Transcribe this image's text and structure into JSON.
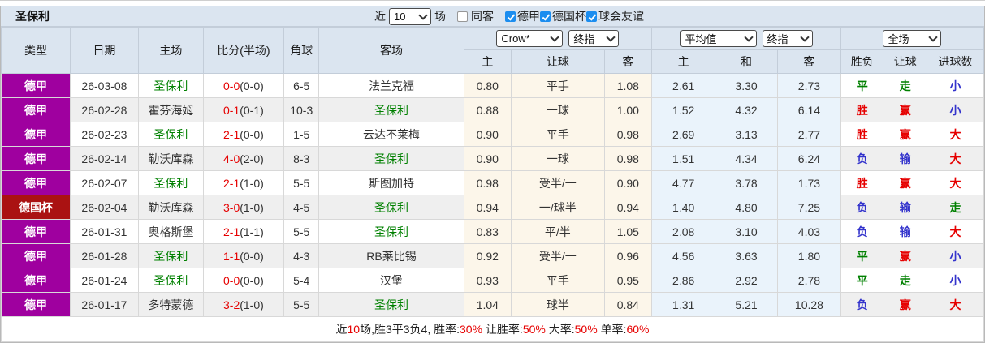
{
  "topbar": {
    "team": "圣保利",
    "recent_prefix": "近",
    "recent_count": "10",
    "recent_suffix": "场",
    "checkboxes": [
      {
        "label": "同客",
        "checked": false
      },
      {
        "label": "德甲",
        "checked": true
      },
      {
        "label": "德国杯",
        "checked": true
      },
      {
        "label": "球会友谊",
        "checked": true
      }
    ]
  },
  "header": {
    "main_cols": [
      "类型",
      "日期",
      "主场",
      "比分(半场)",
      "角球",
      "客场"
    ],
    "selects": {
      "bookmaker": "Crow*",
      "bookmaker_stage": "终指",
      "avg": "平均值",
      "avg_stage": "终指",
      "period": "全场"
    },
    "sub_cols": [
      "主",
      "让球",
      "客",
      "主",
      "和",
      "客",
      "胜负",
      "让球",
      "进球数"
    ]
  },
  "colors": {
    "header_bg": "#dbe5f0",
    "league_bundesliga": "#9f009f",
    "league_dfb_pokal": "#aa1212",
    "focus_team": "#008000",
    "score_red": "#e60000",
    "result_win_red": "#e60000",
    "result_draw_green": "#008000",
    "result_lose_blue": "#3333cc",
    "handicap_col_bg": "#fcf6ea",
    "euro_col_bg": "#eaf3fb",
    "checkbox_blue": "#1b8def"
  },
  "rows": [
    {
      "league": "德甲",
      "league_color": "purple",
      "date": "26-03-08",
      "home": "圣保利",
      "home_focus": true,
      "score_full": "0-0",
      "score_half": "(0-0)",
      "corners": "6-5",
      "away": "法兰克福",
      "away_focus": false,
      "ah_home": "0.80",
      "ah_line": "平手",
      "ah_away": "1.08",
      "eu_home": "2.61",
      "eu_draw": "3.30",
      "eu_away": "2.73",
      "result_wdl": {
        "text": "平",
        "color": "green"
      },
      "result_handicap": {
        "text": "走",
        "color": "green"
      },
      "result_goals": {
        "text": "小",
        "color": "blue"
      }
    },
    {
      "league": "德甲",
      "league_color": "purple",
      "date": "26-02-28",
      "home": "霍芬海姆",
      "home_focus": false,
      "score_full": "0-1",
      "score_half": "(0-1)",
      "corners": "10-3",
      "away": "圣保利",
      "away_focus": true,
      "ah_home": "0.88",
      "ah_line": "一球",
      "ah_away": "1.00",
      "eu_home": "1.52",
      "eu_draw": "4.32",
      "eu_away": "6.14",
      "result_wdl": {
        "text": "胜",
        "color": "red"
      },
      "result_handicap": {
        "text": "赢",
        "color": "red"
      },
      "result_goals": {
        "text": "小",
        "color": "blue"
      }
    },
    {
      "league": "德甲",
      "league_color": "purple",
      "date": "26-02-23",
      "home": "圣保利",
      "home_focus": true,
      "score_full": "2-1",
      "score_half": "(0-0)",
      "corners": "1-5",
      "away": "云达不莱梅",
      "away_focus": false,
      "ah_home": "0.90",
      "ah_line": "平手",
      "ah_away": "0.98",
      "eu_home": "2.69",
      "eu_draw": "3.13",
      "eu_away": "2.77",
      "result_wdl": {
        "text": "胜",
        "color": "red"
      },
      "result_handicap": {
        "text": "赢",
        "color": "red"
      },
      "result_goals": {
        "text": "大",
        "color": "red"
      }
    },
    {
      "league": "德甲",
      "league_color": "purple",
      "date": "26-02-14",
      "home": "勒沃库森",
      "home_focus": false,
      "score_full": "4-0",
      "score_half": "(2-0)",
      "corners": "8-3",
      "away": "圣保利",
      "away_focus": true,
      "ah_home": "0.90",
      "ah_line": "一球",
      "ah_away": "0.98",
      "eu_home": "1.51",
      "eu_draw": "4.34",
      "eu_away": "6.24",
      "result_wdl": {
        "text": "负",
        "color": "blue"
      },
      "result_handicap": {
        "text": "输",
        "color": "blue"
      },
      "result_goals": {
        "text": "大",
        "color": "red"
      }
    },
    {
      "league": "德甲",
      "league_color": "purple",
      "date": "26-02-07",
      "home": "圣保利",
      "home_focus": true,
      "score_full": "2-1",
      "score_half": "(1-0)",
      "corners": "5-5",
      "away": "斯图加特",
      "away_focus": false,
      "ah_home": "0.98",
      "ah_line": "受半/一",
      "ah_away": "0.90",
      "eu_home": "4.77",
      "eu_draw": "3.78",
      "eu_away": "1.73",
      "result_wdl": {
        "text": "胜",
        "color": "red"
      },
      "result_handicap": {
        "text": "赢",
        "color": "red"
      },
      "result_goals": {
        "text": "大",
        "color": "red"
      }
    },
    {
      "league": "德国杯",
      "league_color": "darkred",
      "date": "26-02-04",
      "home": "勒沃库森",
      "home_focus": false,
      "score_full": "3-0",
      "score_half": "(1-0)",
      "corners": "4-5",
      "away": "圣保利",
      "away_focus": true,
      "ah_home": "0.94",
      "ah_line": "一/球半",
      "ah_away": "0.94",
      "eu_home": "1.40",
      "eu_draw": "4.80",
      "eu_away": "7.25",
      "result_wdl": {
        "text": "负",
        "color": "blue"
      },
      "result_handicap": {
        "text": "输",
        "color": "blue"
      },
      "result_goals": {
        "text": "走",
        "color": "green"
      }
    },
    {
      "league": "德甲",
      "league_color": "purple",
      "date": "26-01-31",
      "home": "奥格斯堡",
      "home_focus": false,
      "score_full": "2-1",
      "score_half": "(1-1)",
      "corners": "5-5",
      "away": "圣保利",
      "away_focus": true,
      "ah_home": "0.83",
      "ah_line": "平/半",
      "ah_away": "1.05",
      "eu_home": "2.08",
      "eu_draw": "3.10",
      "eu_away": "4.03",
      "result_wdl": {
        "text": "负",
        "color": "blue"
      },
      "result_handicap": {
        "text": "输",
        "color": "blue"
      },
      "result_goals": {
        "text": "大",
        "color": "red"
      }
    },
    {
      "league": "德甲",
      "league_color": "purple",
      "date": "26-01-28",
      "home": "圣保利",
      "home_focus": true,
      "score_full": "1-1",
      "score_half": "(0-0)",
      "corners": "4-3",
      "away": "RB莱比锡",
      "away_focus": false,
      "ah_home": "0.92",
      "ah_line": "受半/一",
      "ah_away": "0.96",
      "eu_home": "4.56",
      "eu_draw": "3.63",
      "eu_away": "1.80",
      "result_wdl": {
        "text": "平",
        "color": "green"
      },
      "result_handicap": {
        "text": "赢",
        "color": "red"
      },
      "result_goals": {
        "text": "小",
        "color": "blue"
      }
    },
    {
      "league": "德甲",
      "league_color": "purple",
      "date": "26-01-24",
      "home": "圣保利",
      "home_focus": true,
      "score_full": "0-0",
      "score_half": "(0-0)",
      "corners": "5-4",
      "away": "汉堡",
      "away_focus": false,
      "ah_home": "0.93",
      "ah_line": "平手",
      "ah_away": "0.95",
      "eu_home": "2.86",
      "eu_draw": "2.92",
      "eu_away": "2.78",
      "result_wdl": {
        "text": "平",
        "color": "green"
      },
      "result_handicap": {
        "text": "走",
        "color": "green"
      },
      "result_goals": {
        "text": "小",
        "color": "blue"
      }
    },
    {
      "league": "德甲",
      "league_color": "purple",
      "date": "26-01-17",
      "home": "多特蒙德",
      "home_focus": false,
      "score_full": "3-2",
      "score_half": "(1-0)",
      "corners": "5-5",
      "away": "圣保利",
      "away_focus": true,
      "ah_home": "1.04",
      "ah_line": "球半",
      "ah_away": "0.84",
      "eu_home": "1.31",
      "eu_draw": "5.21",
      "eu_away": "10.28",
      "result_wdl": {
        "text": "负",
        "color": "blue"
      },
      "result_handicap": {
        "text": "赢",
        "color": "red"
      },
      "result_goals": {
        "text": "大",
        "color": "red"
      }
    }
  ],
  "footer": {
    "segments": [
      {
        "text": "近",
        "red": false
      },
      {
        "text": "10",
        "red": true
      },
      {
        "text": "场,胜3平3负4, 胜率:",
        "red": false
      },
      {
        "text": "30%",
        "red": true
      },
      {
        "text": " 让胜率:",
        "red": false
      },
      {
        "text": "50%",
        "red": true
      },
      {
        "text": " 大率:",
        "red": false
      },
      {
        "text": "50%",
        "red": true
      },
      {
        "text": " 单率:",
        "red": false
      },
      {
        "text": "60%",
        "red": true
      }
    ]
  }
}
